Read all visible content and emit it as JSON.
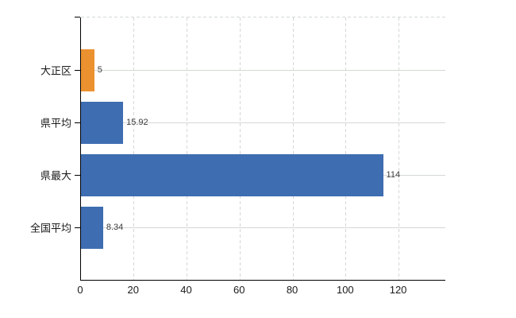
{
  "chart_data": {
    "type": "bar",
    "orientation": "horizontal",
    "title": "",
    "categories": [
      "大正区",
      "県平均",
      "県最大",
      "全国平均"
    ],
    "values": [
      5,
      15.92,
      114,
      8.34
    ],
    "value_labels": [
      "5",
      "15.92",
      "114",
      "8.34"
    ],
    "bar_colors": [
      "#ec9130",
      "#3e6db1",
      "#3e6db1",
      "#3e6db1"
    ],
    "highlight_category": "大正区",
    "x_tick_labels": [
      "0",
      "20",
      "40",
      "60",
      "80",
      "100",
      "120"
    ],
    "x_tick_values": [
      0,
      20,
      40,
      60,
      80,
      100,
      120
    ],
    "xlim": [
      0,
      137.5
    ],
    "grid": true,
    "vertical_gridline_style": "dashed",
    "horizontal_gridline_style": "solid",
    "legend_position": "none",
    "colors": {
      "highlight_bar": "#ec9130",
      "default_bar": "#3e6db1",
      "gridline": "#d3d9d3",
      "axis": "#000000",
      "tick_label": "#1a1a1a",
      "value_label": "#3c3c3c",
      "background": "#ffffff"
    }
  }
}
